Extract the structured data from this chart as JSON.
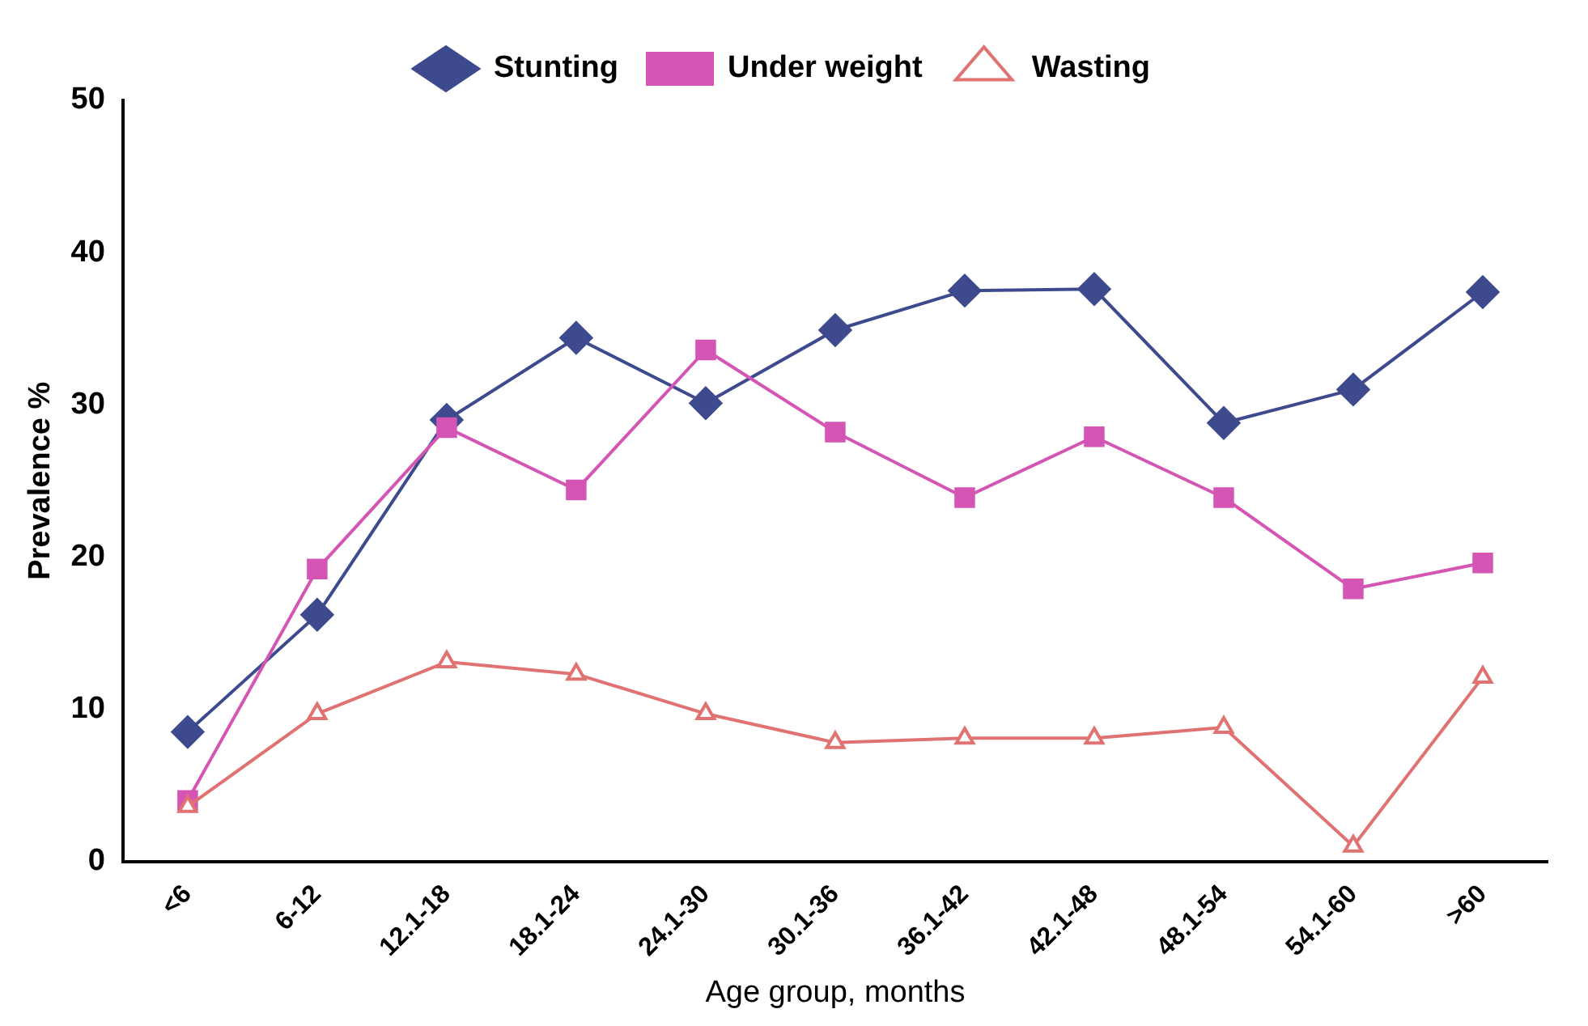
{
  "chart_data": {
    "type": "line",
    "xlabel": "Age group, months",
    "ylabel": "Prevalence %",
    "categories": [
      "<6",
      "6-12",
      "12.1-18",
      "18.1-24",
      "24.1-30",
      "30.1-36",
      "36.1-42",
      "42.1-48",
      "48.1-54",
      "54.1-60",
      ">60"
    ],
    "series": [
      {
        "name": "Stunting",
        "color": "#3d4a8e",
        "marker": "diamond",
        "values": [
          8.5,
          16.2,
          29,
          34.4,
          30.1,
          34.9,
          37.5,
          37.6,
          28.8,
          31,
          37.4
        ]
      },
      {
        "name": "Under weight",
        "color": "#d455b4",
        "marker": "square",
        "values": [
          4,
          19.2,
          28.5,
          24.4,
          33.6,
          28.2,
          23.9,
          27.9,
          23.9,
          17.9,
          19.6
        ]
      },
      {
        "name": "Wasting",
        "color": "#e07272",
        "marker": "triangle",
        "values": [
          3.6,
          9.7,
          13.1,
          12.3,
          9.7,
          7.8,
          8.1,
          8.1,
          8.8,
          1,
          12.1
        ]
      }
    ],
    "ylim": [
      0,
      50
    ],
    "yticks": [
      0,
      10,
      20,
      30,
      40,
      50
    ],
    "grid": false,
    "legend": "top"
  }
}
